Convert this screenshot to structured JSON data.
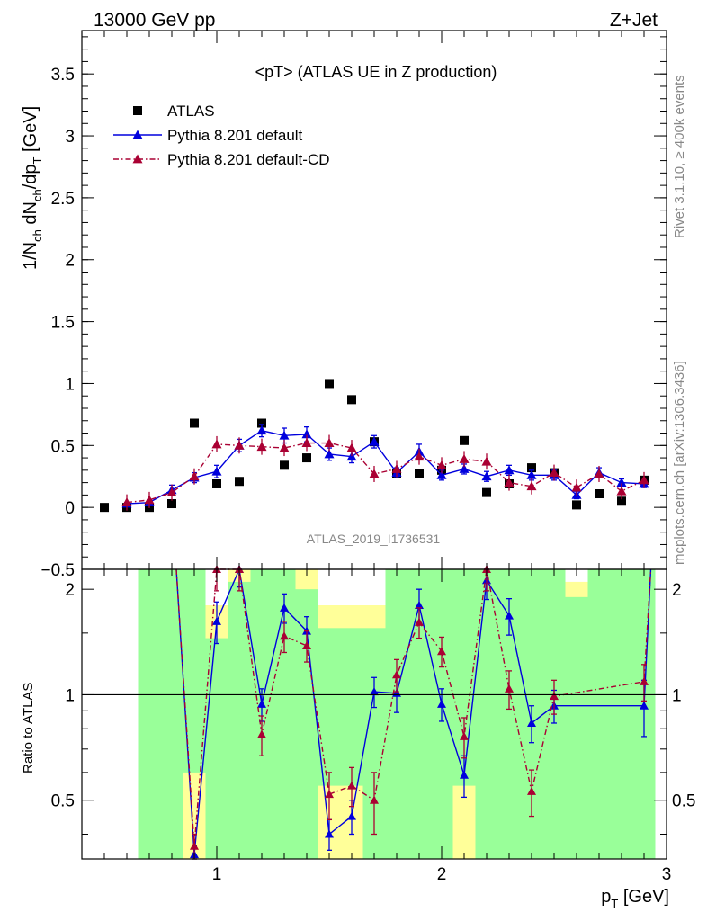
{
  "header": {
    "left": "13000 GeV pp",
    "right": "Z+Jet"
  },
  "side_text": {
    "rivet": "Rivet 3.1.10, ≥ 400k events",
    "mcplots": "mcplots.cern.ch [arXiv:1306.3436]"
  },
  "watermark": "ATLAS_2019_I1736531",
  "chart_data": [
    {
      "type": "scatter",
      "title": "<pT> (ATLAS UE in Z production)",
      "ylabel": "1/N_ch dN_ch/dp_T [GeV]",
      "xlim": [
        0.4,
        3.0
      ],
      "ylim": [
        -0.5,
        3.85
      ],
      "yticks": [
        -0.5,
        0,
        0.5,
        1,
        1.5,
        2,
        2.5,
        3,
        3.5
      ],
      "yticklabels": [
        "−0.5",
        "0",
        "0.5",
        "1",
        "1.5",
        "2",
        "2.5",
        "3",
        "3.5"
      ],
      "legend_position": "top-left",
      "series": [
        {
          "name": "ATLAS",
          "color": "#000000",
          "marker": "square",
          "x": [
            0.5,
            0.6,
            0.7,
            0.8,
            0.9,
            1.0,
            1.1,
            1.2,
            1.3,
            1.4,
            1.5,
            1.6,
            1.7,
            1.8,
            1.9,
            2.0,
            2.1,
            2.2,
            2.3,
            2.4,
            2.5,
            2.6,
            2.7,
            2.8,
            2.9
          ],
          "y": [
            0.0,
            0.0,
            0.0,
            0.03,
            0.68,
            0.19,
            0.21,
            0.68,
            0.34,
            0.4,
            1.0,
            0.87,
            0.53,
            0.27,
            0.27,
            0.3,
            0.54,
            0.12,
            0.19,
            0.32,
            0.28,
            0.02,
            0.11,
            0.05,
            0.22
          ]
        },
        {
          "name": "Pythia 8.201 default",
          "color": "#0000dd",
          "marker": "triangle",
          "linestyle": "solid",
          "x": [
            0.6,
            0.7,
            0.8,
            0.9,
            1.0,
            1.1,
            1.2,
            1.3,
            1.4,
            1.5,
            1.6,
            1.7,
            1.8,
            1.9,
            2.0,
            2.1,
            2.2,
            2.3,
            2.4,
            2.5,
            2.6,
            2.7,
            2.8,
            2.9
          ],
          "y": [
            0.03,
            0.04,
            0.14,
            0.24,
            0.29,
            0.5,
            0.62,
            0.58,
            0.59,
            0.43,
            0.41,
            0.53,
            0.28,
            0.45,
            0.26,
            0.31,
            0.25,
            0.3,
            0.26,
            0.26,
            0.1,
            0.28,
            0.2,
            0.19
          ],
          "yerr": [
            0.01,
            0.02,
            0.04,
            0.04,
            0.05,
            0.05,
            0.05,
            0.06,
            0.06,
            0.05,
            0.05,
            0.05,
            0.04,
            0.06,
            0.04,
            0.04,
            0.04,
            0.04,
            0.04,
            0.04,
            0.03,
            0.04,
            0.03,
            0.03
          ]
        },
        {
          "name": "Pythia 8.201 default-CD",
          "color": "#aa0033",
          "marker": "triangle",
          "linestyle": "dashdot",
          "x": [
            0.6,
            0.7,
            0.8,
            0.9,
            1.0,
            1.1,
            1.2,
            1.3,
            1.4,
            1.5,
            1.6,
            1.7,
            1.8,
            1.9,
            2.0,
            2.1,
            2.2,
            2.3,
            2.4,
            2.5,
            2.6,
            2.7,
            2.8,
            2.9
          ],
          "y": [
            0.04,
            0.06,
            0.12,
            0.25,
            0.51,
            0.5,
            0.49,
            0.48,
            0.52,
            0.52,
            0.48,
            0.27,
            0.31,
            0.41,
            0.34,
            0.39,
            0.37,
            0.2,
            0.17,
            0.28,
            0.16,
            0.27,
            0.13,
            0.22
          ]
        }
      ]
    },
    {
      "type": "scatter",
      "ylabel": "Ratio to ATLAS",
      "xlabel": "p_T [GeV]",
      "xlim": [
        0.4,
        3.0
      ],
      "ylim": [
        0.34,
        2.28
      ],
      "xticklabels": [
        "1",
        "2",
        "3"
      ],
      "yticklabels": [
        "0.5",
        "1",
        "2"
      ],
      "reference_line": 1,
      "band_edges": [
        0.65,
        0.75,
        0.85,
        0.95,
        1.05,
        1.15,
        1.25,
        1.35,
        1.45,
        1.55,
        1.65,
        1.75,
        1.85,
        1.95,
        2.05,
        2.15,
        2.25,
        2.35,
        2.45,
        2.55,
        2.65,
        2.75,
        2.85,
        2.95
      ],
      "bands": {
        "green_lo": [
          0.34,
          0.34,
          0.34,
          0.34,
          0.34,
          0.34,
          0.34,
          0.34,
          0.34,
          0.34,
          0.34,
          0.34,
          0.34,
          0.34,
          0.34,
          0.34,
          0.34,
          0.34,
          0.34,
          0.34,
          0.34,
          0.34,
          0.34
        ],
        "green_hi": [
          2.28,
          2.28,
          2.28,
          1.45,
          2.1,
          2.28,
          2.28,
          2.0,
          1.55,
          1.55,
          1.55,
          2.28,
          2.28,
          2.28,
          2.28,
          2.28,
          2.28,
          2.28,
          2.28,
          1.9,
          2.28,
          2.28,
          2.28
        ],
        "yellow_hi": [
          2.28,
          2.28,
          2.28,
          1.8,
          2.28,
          2.28,
          2.28,
          2.28,
          1.8,
          1.8,
          1.8,
          2.28,
          2.28,
          2.28,
          2.28,
          2.28,
          2.28,
          2.28,
          2.28,
          2.1,
          2.28,
          2.28,
          2.28
        ]
      },
      "series": [
        {
          "name": "Pythia 8.201 default",
          "color": "#0000dd",
          "x": [
            0.9,
            1.0,
            1.1,
            1.2,
            1.3,
            1.4,
            1.5,
            1.6,
            1.7,
            1.8,
            1.9,
            2.0,
            2.1,
            2.2,
            2.3,
            2.4,
            2.5,
            2.9
          ],
          "y": [
            0.35,
            1.62,
            2.28,
            0.94,
            1.77,
            1.52,
            0.4,
            0.45,
            1.02,
            1.01,
            1.8,
            0.94,
            0.59,
            2.12,
            1.68,
            0.83,
            0.93,
            0.93
          ],
          "yerr": [
            0.02,
            0.22,
            0.25,
            0.1,
            0.17,
            0.15,
            0.04,
            0.05,
            0.1,
            0.12,
            0.2,
            0.1,
            0.08,
            0.25,
            0.2,
            0.1,
            0.1,
            0.17
          ]
        },
        {
          "name": "Pythia 8.201 default-CD",
          "color": "#aa0033",
          "x": [
            0.9,
            1.0,
            1.1,
            1.2,
            1.3,
            1.4,
            1.5,
            1.6,
            1.7,
            1.8,
            1.9,
            2.0,
            2.1,
            2.2,
            2.3,
            2.4,
            2.5,
            2.9
          ],
          "y": [
            0.37,
            2.28,
            2.28,
            0.77,
            1.47,
            1.38,
            0.52,
            0.55,
            0.5,
            1.14,
            1.61,
            1.33,
            0.76,
            2.28,
            1.04,
            0.53,
            0.99,
            1.09
          ],
          "yerr": [
            0.03,
            0.3,
            0.3,
            0.1,
            0.15,
            0.14,
            0.08,
            0.07,
            0.1,
            0.12,
            0.16,
            0.13,
            0.1,
            0.3,
            0.13,
            0.08,
            0.11,
            0.13
          ]
        }
      ]
    }
  ]
}
